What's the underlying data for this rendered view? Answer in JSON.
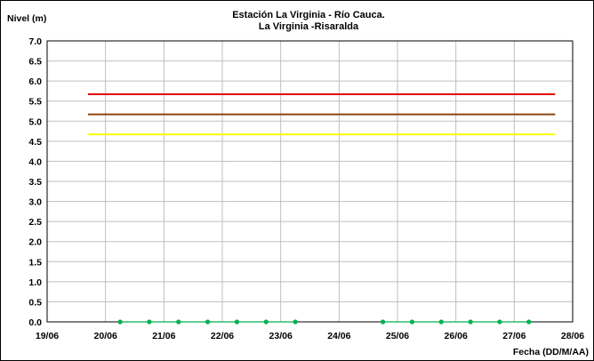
{
  "chart_data": {
    "type": "line",
    "title": "Estación La Virginia  - Río Cauca.",
    "subtitle": "La Virginia -Risaralda",
    "ylabel": "Nivel (m)",
    "xlabel": "Fecha (DD/M/AA)",
    "ylim": [
      0.0,
      7.0
    ],
    "y_ticks": [
      "7.0",
      "6.5",
      "6.0",
      "5.5",
      "5.0",
      "4.5",
      "4.0",
      "3.5",
      "3.0",
      "2.5",
      "2.0",
      "1.5",
      "1.0",
      "0.5",
      "0.0"
    ],
    "x_ticks": [
      "19/06",
      "20/06",
      "21/06",
      "22/06",
      "23/06",
      "24/06",
      "25/06",
      "26/06",
      "27/06",
      "28/06"
    ],
    "grid": true,
    "legend": "none",
    "thresholds": [
      {
        "value": 5.67,
        "x_start": 0.7,
        "x_end": 8.7,
        "color": "#e00000"
      },
      {
        "value": 5.17,
        "x_start": 0.7,
        "x_end": 8.7,
        "color": "#8b4513"
      },
      {
        "value": 4.67,
        "x_start": 0.7,
        "x_end": 8.7,
        "color": "#ffff00"
      }
    ],
    "series": [
      {
        "color": "#00b050",
        "segments": [
          {
            "x": [
              1.25,
              1.75,
              2.25,
              2.75,
              3.25,
              3.75,
              4.25
            ],
            "y": [
              0,
              0,
              0,
              0,
              0,
              0,
              0
            ]
          },
          {
            "x": [
              5.75,
              6.25,
              6.75,
              7.25,
              7.75,
              8.25
            ],
            "y": [
              0,
              0,
              0,
              0,
              0,
              0
            ]
          }
        ]
      }
    ]
  }
}
